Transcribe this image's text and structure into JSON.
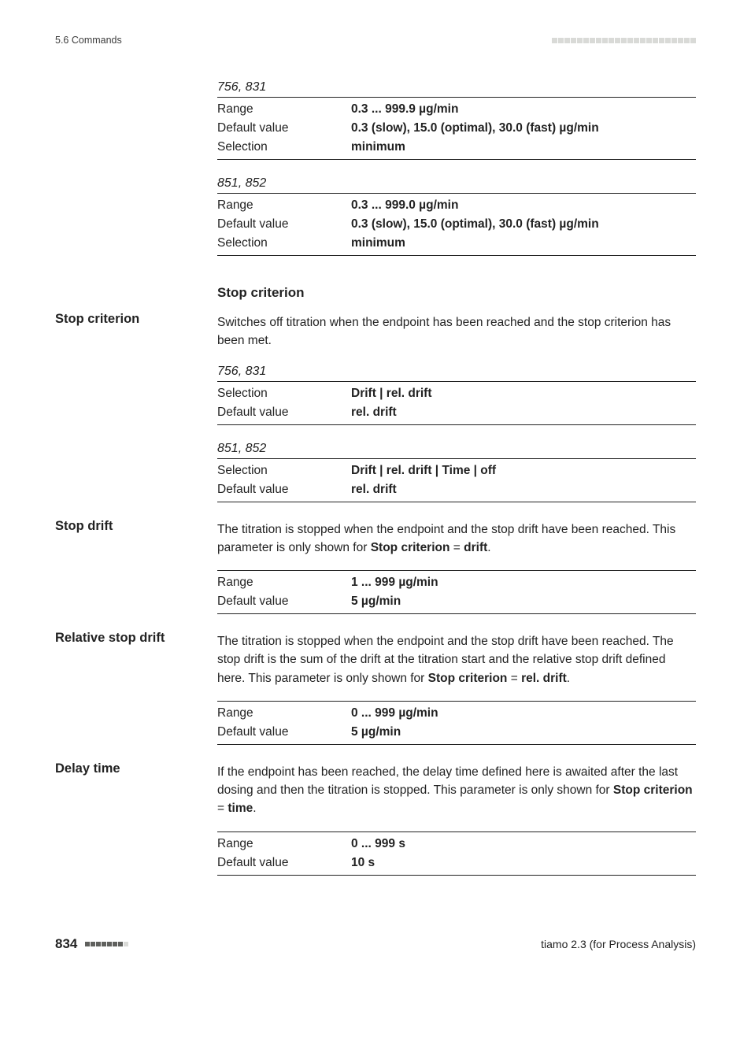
{
  "header": {
    "left": "5.6 Commands"
  },
  "footer": {
    "page": "834",
    "right": "tiamo 2.3 (for Process Analysis)"
  },
  "blocks": {
    "b1": {
      "title": "756, 831",
      "rows": [
        {
          "l": "Range",
          "v": "0.3 ... 999.9 µg/min",
          "bold": true
        },
        {
          "l": "Default value",
          "v": "0.3 (slow), 15.0 (optimal), 30.0 (fast) µg/min",
          "bold": true
        },
        {
          "l": "Selection",
          "v": "minimum",
          "bold": true
        }
      ]
    },
    "b2": {
      "title": "851, 852",
      "rows": [
        {
          "l": "Range",
          "v": "0.3 ... 999.0 µg/min",
          "bold": true
        },
        {
          "l": "Default value",
          "v": "0.3 (slow), 15.0 (optimal), 30.0 (fast) µg/min",
          "bold": true
        },
        {
          "l": "Selection",
          "v": "minimum",
          "bold": true
        }
      ]
    },
    "stopCriterionHeading": "Stop criterion",
    "stopCriterionSide": "Stop criterion",
    "stopCriterionText": "Switches off titration when the endpoint has been reached and the stop criterion has been met.",
    "b3": {
      "title": "756, 831",
      "rows": [
        {
          "l": "Selection",
          "v": "Drift | rel. drift",
          "bold": true
        },
        {
          "l": "Default value",
          "v": "rel. drift",
          "bold": true
        }
      ]
    },
    "b4": {
      "title": "851, 852",
      "rows": [
        {
          "l": "Selection",
          "v": "Drift | rel. drift | Time | off",
          "bold": true
        },
        {
          "l": "Default value",
          "v": "rel. drift",
          "bold": true
        }
      ]
    },
    "stopDriftSide": "Stop drift",
    "stopDriftText_pre": "The titration is stopped when the endpoint and the stop drift have been reached. This parameter is only shown for ",
    "stopDriftText_b1": "Stop criterion",
    "stopDriftText_eq": " = ",
    "stopDriftText_b2": "drift",
    "stopDriftText_end": ".",
    "b5": {
      "rows": [
        {
          "l": "Range",
          "v": "1 ... 999 µg/min",
          "bold": true
        },
        {
          "l": "Default value",
          "v": "5 µg/min",
          "bold": true
        }
      ]
    },
    "relStopSide": "Relative stop drift",
    "relStopText_pre": "The titration is stopped when the endpoint and the stop drift have been reached. The stop drift is the sum of the drift at the titration start and the relative stop drift defined here. This parameter is only shown for ",
    "relStopText_b1": "Stop criterion",
    "relStopText_eq": " = ",
    "relStopText_b2": "rel. drift",
    "relStopText_end": ".",
    "b6": {
      "rows": [
        {
          "l": "Range",
          "v": "0 ... 999 µg/min",
          "bold": true
        },
        {
          "l": "Default value",
          "v": "5 µg/min",
          "bold": true
        }
      ]
    },
    "delaySide": "Delay time",
    "delayText_pre": "If the endpoint has been reached, the delay time defined here is awaited after the last dosing and then the titration is stopped. This parameter is only shown for ",
    "delayText_b1": "Stop criterion",
    "delayText_eq": " = ",
    "delayText_b2": "time",
    "delayText_end": ".",
    "b7": {
      "rows": [
        {
          "l": "Range",
          "v": "0 ... 999 s",
          "bold": true
        },
        {
          "l": "Default value",
          "v": "10 s",
          "bold": true
        }
      ]
    }
  }
}
